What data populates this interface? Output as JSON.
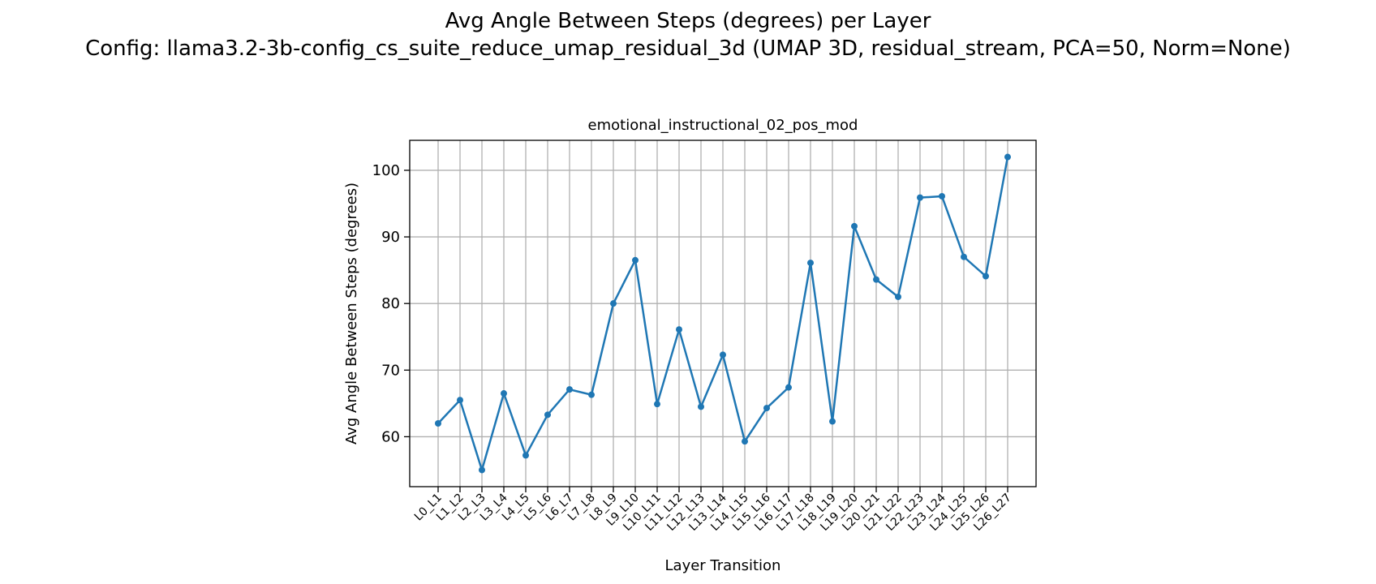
{
  "figure": {
    "title_line_1": "Avg Angle Between Steps (degrees) per Layer",
    "title_line_2": "Config: llama3.2-3b-config_cs_suite_reduce_umap_residual_3d (UMAP 3D, residual_stream, PCA=50, Norm=None)"
  },
  "chart_data": {
    "type": "line",
    "title": "emotional_instructional_02_pos_mod",
    "xlabel": "Layer Transition",
    "ylabel": "Avg Angle Between Steps (degrees)",
    "ylim": [
      52.5,
      104.5
    ],
    "yticks": [
      60,
      70,
      80,
      90,
      100
    ],
    "grid": true,
    "series_color": "#1f77b4",
    "categories": [
      "L0_L1",
      "L1_L2",
      "L2_L3",
      "L3_L4",
      "L4_L5",
      "L5_L6",
      "L6_L7",
      "L7_L8",
      "L8_L9",
      "L9_L10",
      "L10_L11",
      "L11_L12",
      "L12_L13",
      "L13_L14",
      "L14_L15",
      "L15_L16",
      "L16_L17",
      "L17_L18",
      "L18_L19",
      "L19_L20",
      "L20_L21",
      "L21_L22",
      "L22_L23",
      "L23_L24",
      "L24_L25",
      "L25_L26",
      "L26_L27"
    ],
    "values": [
      62.0,
      65.5,
      55.0,
      66.5,
      57.2,
      63.3,
      67.1,
      66.3,
      80.0,
      86.5,
      64.9,
      76.1,
      64.5,
      72.3,
      59.3,
      64.3,
      67.4,
      86.1,
      62.3,
      91.6,
      83.6,
      81.0,
      95.9,
      96.1,
      87.0,
      84.1,
      102.0
    ]
  }
}
